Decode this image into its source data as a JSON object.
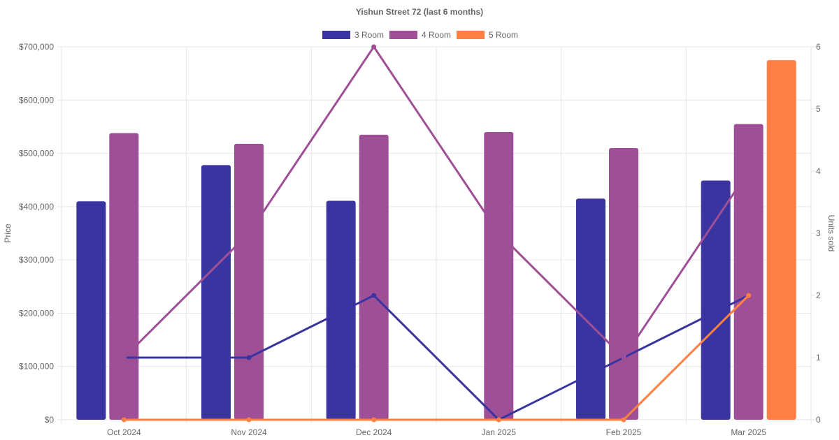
{
  "chart_data": {
    "type": "bar",
    "title": "Yishun Street 72 (last 6 months)",
    "categories": [
      "Oct 2024",
      "Nov 2024",
      "Dec 2024",
      "Jan 2025",
      "Feb 2025",
      "Mar 2025"
    ],
    "legend_position": "top",
    "grid": true,
    "y_left": {
      "label": "Price",
      "range": [
        0,
        700000
      ],
      "ticks": [
        "$0",
        "$100,000",
        "$200,000",
        "$300,000",
        "$400,000",
        "$500,000",
        "$600,000",
        "$700,000"
      ]
    },
    "y_right": {
      "label": "Units sold",
      "range": [
        0,
        6
      ],
      "ticks": [
        "0",
        "1",
        "2",
        "3",
        "4",
        "5",
        "6"
      ]
    },
    "series": [
      {
        "name": "3 Room",
        "color": "#3a34a0",
        "price": [
          410000,
          478000,
          411000,
          null,
          415000,
          449000
        ],
        "units": [
          1,
          1,
          2,
          0,
          1,
          2
        ]
      },
      {
        "name": "4 Room",
        "color": "#9e4f96",
        "price": [
          538000,
          518000,
          535000,
          540000,
          510000,
          555000
        ],
        "units": [
          1,
          3,
          6,
          3,
          1,
          4
        ]
      },
      {
        "name": "5 Room",
        "color": "#ff7f45",
        "price": [
          null,
          null,
          null,
          null,
          null,
          675000
        ],
        "units": [
          0,
          0,
          0,
          0,
          0,
          2
        ]
      }
    ]
  }
}
